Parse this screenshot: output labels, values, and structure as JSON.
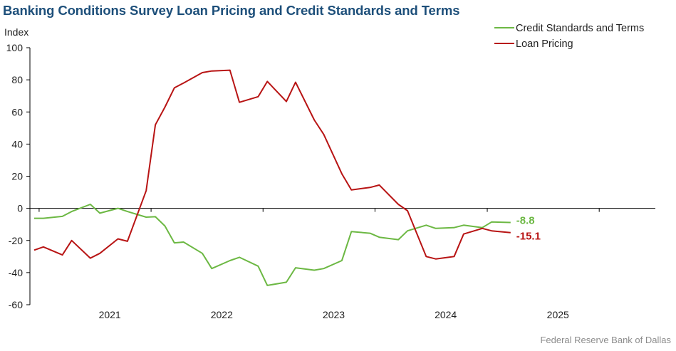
{
  "title": "Banking Conditions Survey Loan Pricing and Credit Standards and Terms",
  "source": "Federal Reserve Bank of Dallas",
  "chart_data": {
    "type": "line",
    "title": "Banking Conditions Survey Loan Pricing and Credit Standards and Terms",
    "ylabel": "Index",
    "xlabel": "",
    "ylim": [
      -60,
      100
    ],
    "yticks": [
      -60,
      -40,
      -20,
      0,
      20,
      40,
      60,
      80,
      100
    ],
    "xlim": [
      "2020-06-01",
      "2025-12-31"
    ],
    "xticks": [
      {
        "label": "2021",
        "date": "2021-01-01"
      },
      {
        "label": "2022",
        "date": "2022-01-01"
      },
      {
        "label": "2023",
        "date": "2023-01-01"
      },
      {
        "label": "2024",
        "date": "2024-01-01"
      },
      {
        "label": "2025",
        "date": "2025-01-01"
      }
    ],
    "grid": false,
    "legend_position": "top-right",
    "x": [
      "2020-06",
      "2020-07",
      "2020-09",
      "2020-10",
      "2020-12",
      "2021-01",
      "2021-03",
      "2021-04",
      "2021-06",
      "2021-07",
      "2021-08",
      "2021-09",
      "2021-10",
      "2021-12",
      "2022-01",
      "2022-03",
      "2022-04",
      "2022-06",
      "2022-07",
      "2022-09",
      "2022-10",
      "2022-12",
      "2023-01",
      "2023-03",
      "2023-04",
      "2023-06",
      "2023-07",
      "2023-09",
      "2023-10",
      "2023-12",
      "2024-01",
      "2024-03",
      "2024-04",
      "2024-06",
      "2024-07",
      "2024-09",
      "2024-10",
      "2024-12"
    ],
    "series": [
      {
        "name": "Credit Standards and Terms",
        "color": "#6cb843",
        "end_label": "-8.8",
        "values": [
          -6.2,
          -6.2,
          -5.0,
          -2.0,
          2.5,
          -3.0,
          0.0,
          -2.0,
          -5.5,
          -5.2,
          -11.0,
          -21.5,
          -21.0,
          -28.0,
          -37.5,
          -32.5,
          -30.5,
          -36.0,
          -48.0,
          -46.0,
          -37.0,
          -38.5,
          -37.5,
          -32.5,
          -14.5,
          -15.5,
          -18.0,
          -19.5,
          -14.0,
          -10.5,
          -12.5,
          -12.0,
          -10.5,
          -12.0,
          -8.5,
          -8.8,
          null,
          null
        ]
      },
      {
        "name": "Loan Pricing",
        "color": "#b81414",
        "end_label": "-15.1",
        "values": [
          -26.0,
          -24.0,
          -29.0,
          -20.0,
          -31.0,
          -28.0,
          -19.0,
          -20.5,
          11.0,
          52.0,
          63.0,
          75.0,
          78.0,
          84.5,
          85.5,
          86.0,
          66.0,
          69.5,
          79.0,
          66.5,
          78.5,
          55.0,
          46.0,
          21.5,
          11.5,
          13.0,
          14.5,
          2.5,
          -1.5,
          -30.0,
          -31.5,
          -30.0,
          -16.0,
          -12.5,
          -14.0,
          -15.1,
          null,
          null
        ]
      }
    ]
  }
}
